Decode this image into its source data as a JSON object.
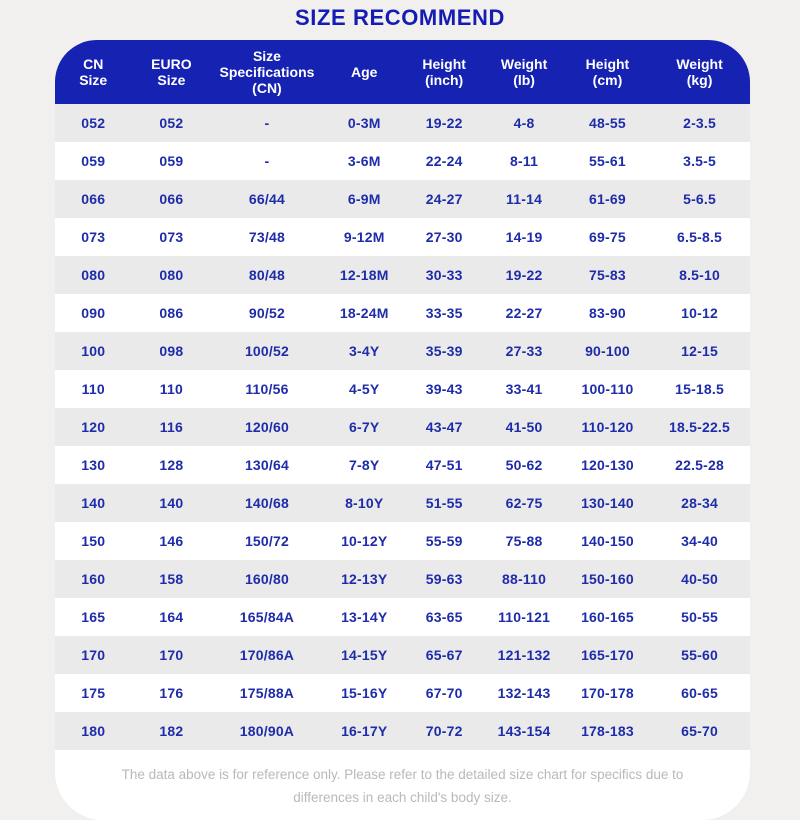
{
  "page": {
    "title": "SIZE RECOMMEND"
  },
  "colors": {
    "page_background": "#f1f0ef",
    "header_background": "#1522b2",
    "header_text": "#ffffff",
    "cell_text": "#1e2caa",
    "stripe_row_background": "#eaeaea",
    "white_row_background": "#ffffff",
    "footnote_text": "#b9b9b9"
  },
  "table": {
    "columns": [
      {
        "name": "cn-size",
        "lines": [
          "CN",
          "Size"
        ]
      },
      {
        "name": "euro-size",
        "lines": [
          "EURO",
          "Size"
        ]
      },
      {
        "name": "size-specifications",
        "lines": [
          "Size",
          "Specifications",
          "(CN)"
        ]
      },
      {
        "name": "age",
        "lines": [
          "Age"
        ]
      },
      {
        "name": "height-inch",
        "lines": [
          "Height",
          "(inch)"
        ]
      },
      {
        "name": "weight-lb",
        "lines": [
          "Weight",
          "(lb)"
        ]
      },
      {
        "name": "height-cm",
        "lines": [
          "Height",
          "(cm)"
        ]
      },
      {
        "name": "weight-kg",
        "lines": [
          "Weight",
          "(kg)"
        ]
      }
    ]
  },
  "chart_data": {
    "type": "table",
    "title": "SIZE RECOMMEND",
    "columns": [
      "CN Size",
      "EURO Size",
      "Size Specifications (CN)",
      "Age",
      "Height (inch)",
      "Weight (lb)",
      "Height (cm)",
      "Weight (kg)"
    ],
    "rows": [
      [
        "052",
        "052",
        "-",
        "0-3M",
        "19-22",
        "4-8",
        "48-55",
        "2-3.5"
      ],
      [
        "059",
        "059",
        "-",
        "3-6M",
        "22-24",
        "8-11",
        "55-61",
        "3.5-5"
      ],
      [
        "066",
        "066",
        "66/44",
        "6-9M",
        "24-27",
        "11-14",
        "61-69",
        "5-6.5"
      ],
      [
        "073",
        "073",
        "73/48",
        "9-12M",
        "27-30",
        "14-19",
        "69-75",
        "6.5-8.5"
      ],
      [
        "080",
        "080",
        "80/48",
        "12-18M",
        "30-33",
        "19-22",
        "75-83",
        "8.5-10"
      ],
      [
        "090",
        "086",
        "90/52",
        "18-24M",
        "33-35",
        "22-27",
        "83-90",
        "10-12"
      ],
      [
        "100",
        "098",
        "100/52",
        "3-4Y",
        "35-39",
        "27-33",
        "90-100",
        "12-15"
      ],
      [
        "110",
        "110",
        "110/56",
        "4-5Y",
        "39-43",
        "33-41",
        "100-110",
        "15-18.5"
      ],
      [
        "120",
        "116",
        "120/60",
        "6-7Y",
        "43-47",
        "41-50",
        "110-120",
        "18.5-22.5"
      ],
      [
        "130",
        "128",
        "130/64",
        "7-8Y",
        "47-51",
        "50-62",
        "120-130",
        "22.5-28"
      ],
      [
        "140",
        "140",
        "140/68",
        "8-10Y",
        "51-55",
        "62-75",
        "130-140",
        "28-34"
      ],
      [
        "150",
        "146",
        "150/72",
        "10-12Y",
        "55-59",
        "75-88",
        "140-150",
        "34-40"
      ],
      [
        "160",
        "158",
        "160/80",
        "12-13Y",
        "59-63",
        "88-110",
        "150-160",
        "40-50"
      ],
      [
        "165",
        "164",
        "165/84A",
        "13-14Y",
        "63-65",
        "110-121",
        "160-165",
        "50-55"
      ],
      [
        "170",
        "170",
        "170/86A",
        "14-15Y",
        "65-67",
        "121-132",
        "165-170",
        "55-60"
      ],
      [
        "175",
        "176",
        "175/88A",
        "15-16Y",
        "67-70",
        "132-143",
        "170-178",
        "60-65"
      ],
      [
        "180",
        "182",
        "180/90A",
        "16-17Y",
        "70-72",
        "143-154",
        "178-183",
        "65-70"
      ]
    ],
    "footnote": "The data above is for reference only. Please refer to the detailed size chart for specifics due to differences in each child's body size.",
    "layout": "header row blue with white text, body rows alternate gray/white stripes starting gray, all cell text deep blue bold, rounded top and bottom card corners"
  },
  "footer": {
    "line1": "The data above is for reference only. Please refer to the detailed size chart for specifics due to",
    "line2": "differences in each child's body size."
  }
}
